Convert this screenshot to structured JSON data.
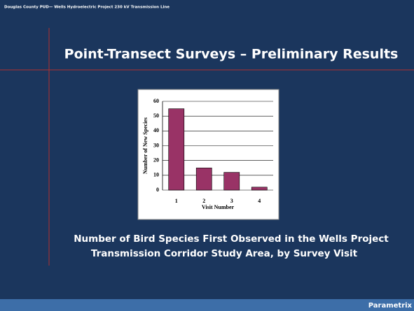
{
  "header": "Douglas County PUD— Wells Hydroelectric Project 230 kV Transmission Line",
  "title": "Point-Transect Surveys – Preliminary Results",
  "caption": [
    "Number of Bird Species First Observed in the Wells Project",
    "Transmission Corridor Study Area, by Survey Visit"
  ],
  "footer": "Parametrix",
  "chart_data": {
    "type": "bar",
    "x_label": "Visit Number",
    "y_label": "Number of New Species",
    "categories": [
      "1",
      "2",
      "3",
      "4"
    ],
    "values": [
      55,
      15,
      12,
      2
    ],
    "color": "#993366",
    "ylim": [
      0,
      60
    ],
    "yticks": [
      0,
      10,
      20,
      30,
      40,
      50,
      60
    ],
    "grid": true
  }
}
